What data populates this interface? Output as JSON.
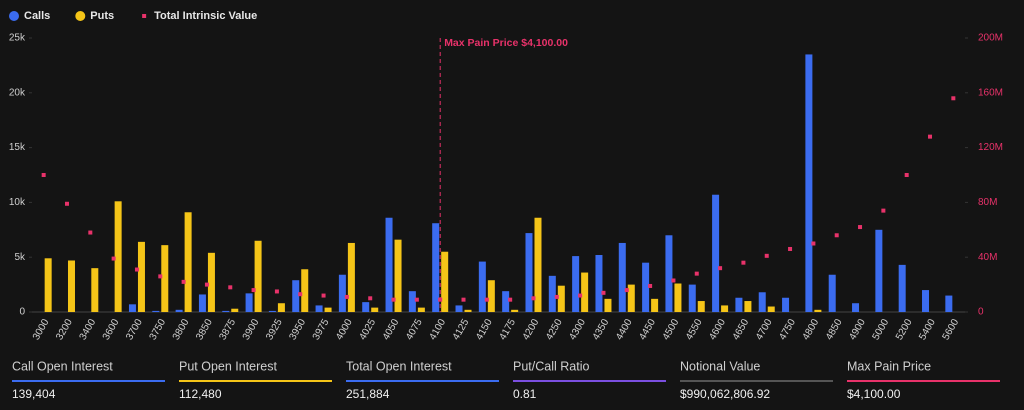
{
  "chart_data": {
    "type": "bar",
    "categories": [
      "3000",
      "3200",
      "3400",
      "3600",
      "3700",
      "3750",
      "3800",
      "3850",
      "3875",
      "3900",
      "3925",
      "3950",
      "3975",
      "4000",
      "4025",
      "4050",
      "4075",
      "4100",
      "4125",
      "4150",
      "4175",
      "4200",
      "4250",
      "4300",
      "4350",
      "4400",
      "4450",
      "4500",
      "4550",
      "4600",
      "4650",
      "4700",
      "4750",
      "4800",
      "4850",
      "4900",
      "5000",
      "5200",
      "5400",
      "5600"
    ],
    "series": [
      {
        "name": "Calls",
        "type": "bar",
        "color": "#3b6cf0",
        "values": [
          0,
          0,
          0,
          0,
          700,
          100,
          200,
          1600,
          100,
          1700,
          100,
          2900,
          600,
          3400,
          900,
          8600,
          1900,
          8100,
          600,
          4600,
          1900,
          7200,
          3300,
          5100,
          5200,
          6300,
          4500,
          7000,
          2500,
          10700,
          1300,
          1800,
          1300,
          23500,
          3400,
          800,
          7500,
          4300,
          2000,
          1500
        ]
      },
      {
        "name": "Puts",
        "type": "bar",
        "color": "#f5c518",
        "values": [
          4900,
          4700,
          4000,
          10100,
          6400,
          6100,
          9100,
          5400,
          300,
          6500,
          800,
          3900,
          400,
          6300,
          400,
          6600,
          400,
          5500,
          200,
          2900,
          200,
          8600,
          2400,
          3600,
          1200,
          2500,
          1200,
          2600,
          1000,
          600,
          1000,
          500,
          0,
          200,
          0,
          0,
          0,
          0,
          0,
          0
        ]
      },
      {
        "name": "Total Intrinsic Value",
        "type": "scatter",
        "axis": "y2",
        "color": "#e8326a",
        "values": [
          100000000,
          79000000,
          58000000,
          39000000,
          31000000,
          26000000,
          22000000,
          20000000,
          18000000,
          16000000,
          15000000,
          13000000,
          12000000,
          11000000,
          10000000,
          9000000,
          9000000,
          9000000,
          9000000,
          9000000,
          9000000,
          10000000,
          11000000,
          12000000,
          14000000,
          16000000,
          19000000,
          23000000,
          28000000,
          32000000,
          36000000,
          41000000,
          46000000,
          50000000,
          56000000,
          62000000,
          74000000,
          100000000,
          128000000,
          156000000
        ]
      }
    ],
    "ylim": [
      0,
      25000
    ],
    "yticks": [
      0,
      {
        "value": 5000,
        "label": "5k"
      },
      {
        "value": 10000,
        "label": "10k"
      },
      {
        "value": 15000,
        "label": "15k"
      },
      {
        "value": 20000,
        "label": "20k"
      },
      {
        "value": 25000,
        "label": "25k"
      }
    ],
    "y2lim": [
      0,
      200000000
    ],
    "y2ticks": [
      0,
      {
        "value": 40000000,
        "label": "40M"
      },
      {
        "value": 80000000,
        "label": "80M"
      },
      {
        "value": 120000000,
        "label": "120M"
      },
      {
        "value": 160000000,
        "label": "160M"
      },
      {
        "value": 200000000,
        "label": "200M"
      }
    ],
    "grid": false,
    "annotation": {
      "text": "Max Pain Price $4,100.00",
      "category": "4100",
      "color": "#e8326a"
    }
  },
  "stats": [
    {
      "label": "Call Open Interest",
      "value": "139,404",
      "color": "#3b6cf0"
    },
    {
      "label": "Put Open Interest",
      "value": "112,480",
      "color": "#f5c518"
    },
    {
      "label": "Total Open Interest",
      "value": "251,884",
      "color": "#3b6cf0"
    },
    {
      "label": "Put/Call Ratio",
      "value": "0.81",
      "color": "#7b4fe0"
    },
    {
      "label": "Notional Value",
      "value": "$990,062,806.92",
      "color": "#555555"
    },
    {
      "label": "Max Pain Price",
      "value": "$4,100.00",
      "color": "#e8326a"
    }
  ]
}
